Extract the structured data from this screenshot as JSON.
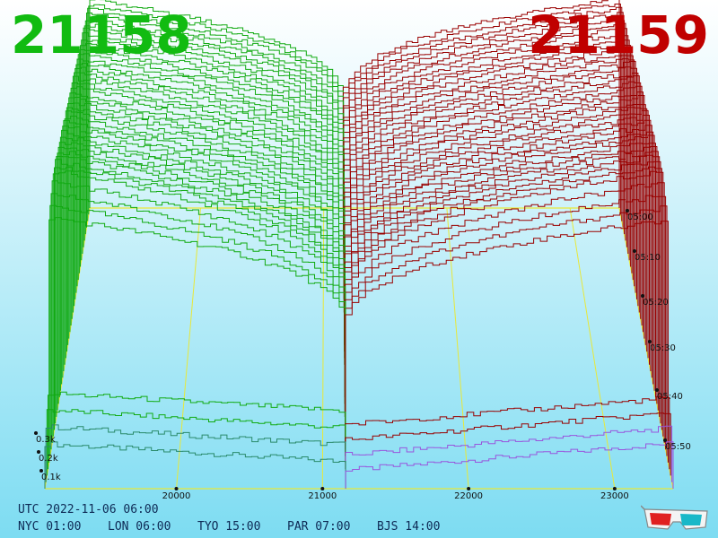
{
  "header": {
    "bid_price": "21158",
    "ask_price": "21159",
    "bid_color": "#11bb11",
    "ask_color": "#c00000"
  },
  "chart_data": {
    "type": "area",
    "x_ticks": [
      "20000",
      "21000",
      "22000",
      "23000"
    ],
    "y_ticks": [
      "0.1k",
      "0.2k",
      "0.3k"
    ],
    "time_ticks": [
      "05:00",
      "05:10",
      "05:20",
      "05:30",
      "05:40",
      "05:50"
    ],
    "x_range": [
      19100,
      23400
    ],
    "grid": true,
    "series": [
      {
        "color": "#11aa11"
      },
      {
        "color": "#990000"
      }
    ]
  },
  "clocks": {
    "utc": "UTC 2022-11-06 06:00",
    "cities": [
      "NYC 01:00",
      "LON 06:00",
      "TYO 15:00",
      "PAR 07:00",
      "BJS 14:00"
    ]
  },
  "icons": {
    "glasses": "3d-glasses-icon"
  }
}
